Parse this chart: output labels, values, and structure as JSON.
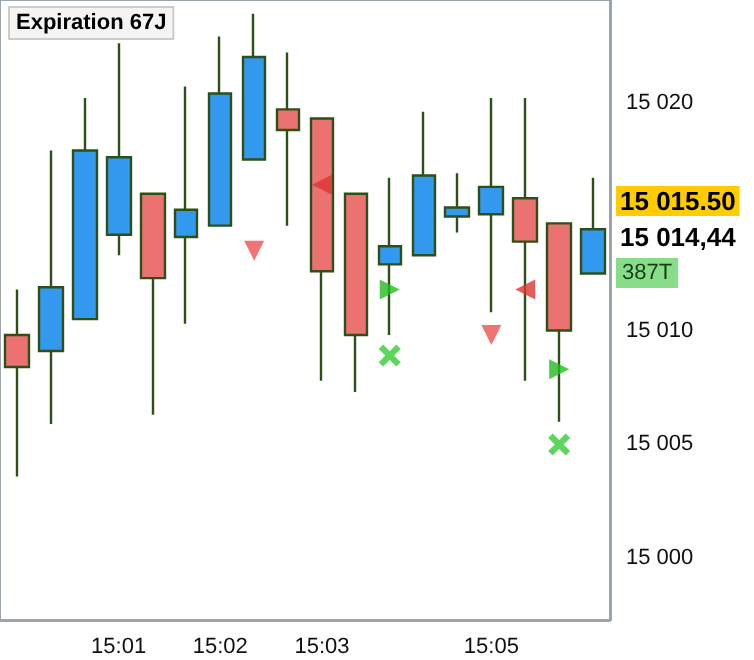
{
  "chart_data": {
    "type": "candlestick",
    "categories": [
      null,
      null,
      null,
      "15:01",
      null,
      null,
      "15:02",
      null,
      null,
      "15:03",
      null,
      null,
      null,
      null,
      "15:05",
      null,
      null,
      null
    ],
    "ohlc": [
      [
        15009.8,
        15011.8,
        15003.6,
        15008.4
      ],
      [
        15009.1,
        15017.9,
        15005.9,
        15011.9
      ],
      [
        15010.5,
        15020.2,
        15010.5,
        15017.9
      ],
      [
        15014.2,
        15022.6,
        15013.3,
        15017.6
      ],
      [
        15016.0,
        15016.0,
        15006.3,
        15012.3
      ],
      [
        15014.1,
        15020.7,
        15010.3,
        15015.3
      ],
      [
        15014.6,
        15022.9,
        15014.6,
        15020.4
      ],
      [
        15017.5,
        15023.9,
        15017.5,
        15022.0
      ],
      [
        15019.7,
        15022.2,
        15014.6,
        15018.8
      ],
      [
        15019.3,
        15019.3,
        15007.8,
        15012.6
      ],
      [
        15016.0,
        15016.0,
        15007.3,
        15009.8
      ],
      [
        15012.9,
        15016.7,
        15009.8,
        15013.7
      ],
      [
        15013.3,
        15019.6,
        15013.3,
        15016.8
      ],
      [
        15015.0,
        15016.9,
        15014.3,
        15015.4
      ],
      [
        15015.1,
        15020.2,
        15010.8,
        15016.3
      ],
      [
        15015.8,
        15020.2,
        15007.8,
        15013.9
      ],
      [
        15014.7,
        15014.7,
        15006.0,
        15010.0
      ],
      [
        15012.5,
        15016.7,
        15012.5,
        15014.44
      ]
    ],
    "series": [
      {
        "type": "scatter",
        "marker": "triangle",
        "color": "#ee5050",
        "values": [
          null,
          null,
          null,
          null,
          null,
          null,
          null,
          15013.5,
          null,
          null,
          null,
          null,
          null,
          null,
          15009.8,
          null,
          null,
          null
        ]
      },
      {
        "type": "scatter",
        "marker": "cross",
        "color": "#33cc33",
        "values": [
          null,
          null,
          null,
          null,
          null,
          null,
          null,
          null,
          null,
          null,
          null,
          15008.9,
          null,
          null,
          null,
          null,
          15005.0,
          null
        ]
      },
      {
        "type": "scatter",
        "marker": "triangle",
        "color": "#dd3333",
        "values": [
          null,
          null,
          null,
          null,
          null,
          null,
          null,
          null,
          null,
          15016.4,
          null,
          null,
          null,
          null,
          null,
          15011.8,
          null,
          null
        ]
      },
      {
        "type": "scatter",
        "marker": "triangle",
        "color": "#22bb22",
        "values": [
          null,
          null,
          null,
          null,
          null,
          null,
          null,
          null,
          null,
          null,
          null,
          15011.8,
          null,
          null,
          null,
          null,
          15008.3,
          null
        ]
      }
    ],
    "ylim": [
      14997.3,
      15024.5
    ],
    "yticks": [
      15000,
      15005,
      15010,
      15020
    ],
    "annotations": [
      "Expiration 67J",
      "15 015.50",
      "15 014,44",
      "387T"
    ],
    "grid": false
  }
}
